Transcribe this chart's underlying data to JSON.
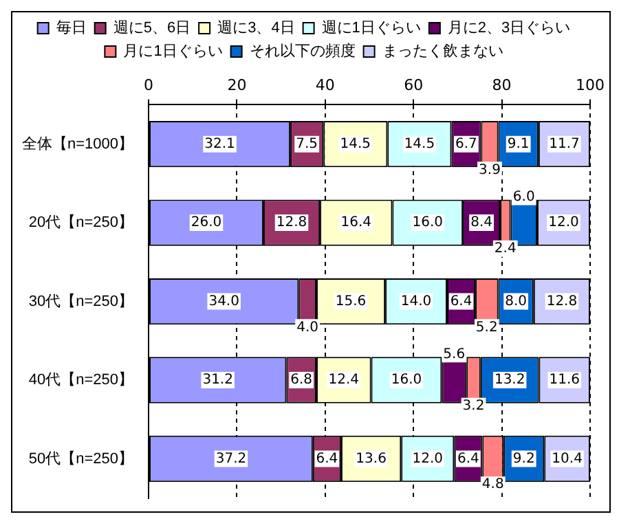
{
  "chart_data": {
    "type": "bar",
    "orientation": "horizontal",
    "stacked": true,
    "categories": [
      "全体【n=1000】",
      "20代【n=250】",
      "30代【n=250】",
      "40代【n=250】",
      "50代【n=250】"
    ],
    "series": [
      {
        "name": "毎日",
        "color": "#9999ff",
        "values": [
          32.1,
          26.0,
          34.0,
          31.2,
          37.2
        ]
      },
      {
        "name": "週に5、6日",
        "color": "#993366",
        "values": [
          7.5,
          12.8,
          4.0,
          6.8,
          6.4
        ]
      },
      {
        "name": "週に3、4日",
        "color": "#ffffcc",
        "values": [
          14.5,
          16.4,
          15.6,
          12.4,
          13.6
        ]
      },
      {
        "name": "週に1日ぐらい",
        "color": "#ccffff",
        "values": [
          14.5,
          16.0,
          14.0,
          16.0,
          12.0
        ]
      },
      {
        "name": "月に2、3日ぐらい",
        "color": "#660066",
        "values": [
          6.7,
          8.4,
          6.4,
          5.6,
          6.4
        ]
      },
      {
        "name": "月に1日ぐらい",
        "color": "#ff8080",
        "values": [
          3.9,
          2.4,
          5.2,
          3.2,
          4.8
        ]
      },
      {
        "name": "それ以下の頻度",
        "color": "#0066cc",
        "values": [
          9.1,
          6.0,
          8.0,
          13.2,
          9.2
        ]
      },
      {
        "name": "まったく飲まない",
        "color": "#ccccff",
        "values": [
          11.7,
          12.0,
          12.8,
          11.6,
          10.4
        ]
      }
    ],
    "value_labels": [
      [
        "32.1",
        "26.0",
        "34.0",
        "31.2",
        "37.2"
      ],
      [
        "7.5",
        "12.8",
        "4.0",
        "6.8",
        "6.4"
      ],
      [
        "14.5",
        "16.4",
        "15.6",
        "12.4",
        "13.6"
      ],
      [
        "14.5",
        "16.0",
        "14.0",
        "16.0",
        "12.0"
      ],
      [
        "6.7",
        "8.4",
        "6.4",
        "5.6",
        "6.4"
      ],
      [
        "3.9",
        "2.4",
        "5.2",
        "3.2",
        "4.8"
      ],
      [
        "9.1",
        "6.0",
        "8.0",
        "13.2",
        "9.2"
      ],
      [
        "11.7",
        "12.0",
        "12.8",
        "11.6",
        "10.4"
      ]
    ],
    "xlim": [
      0,
      100
    ],
    "xticks": [
      0,
      20,
      40,
      60,
      80,
      100
    ],
    "grid": "x",
    "legend": "top"
  }
}
